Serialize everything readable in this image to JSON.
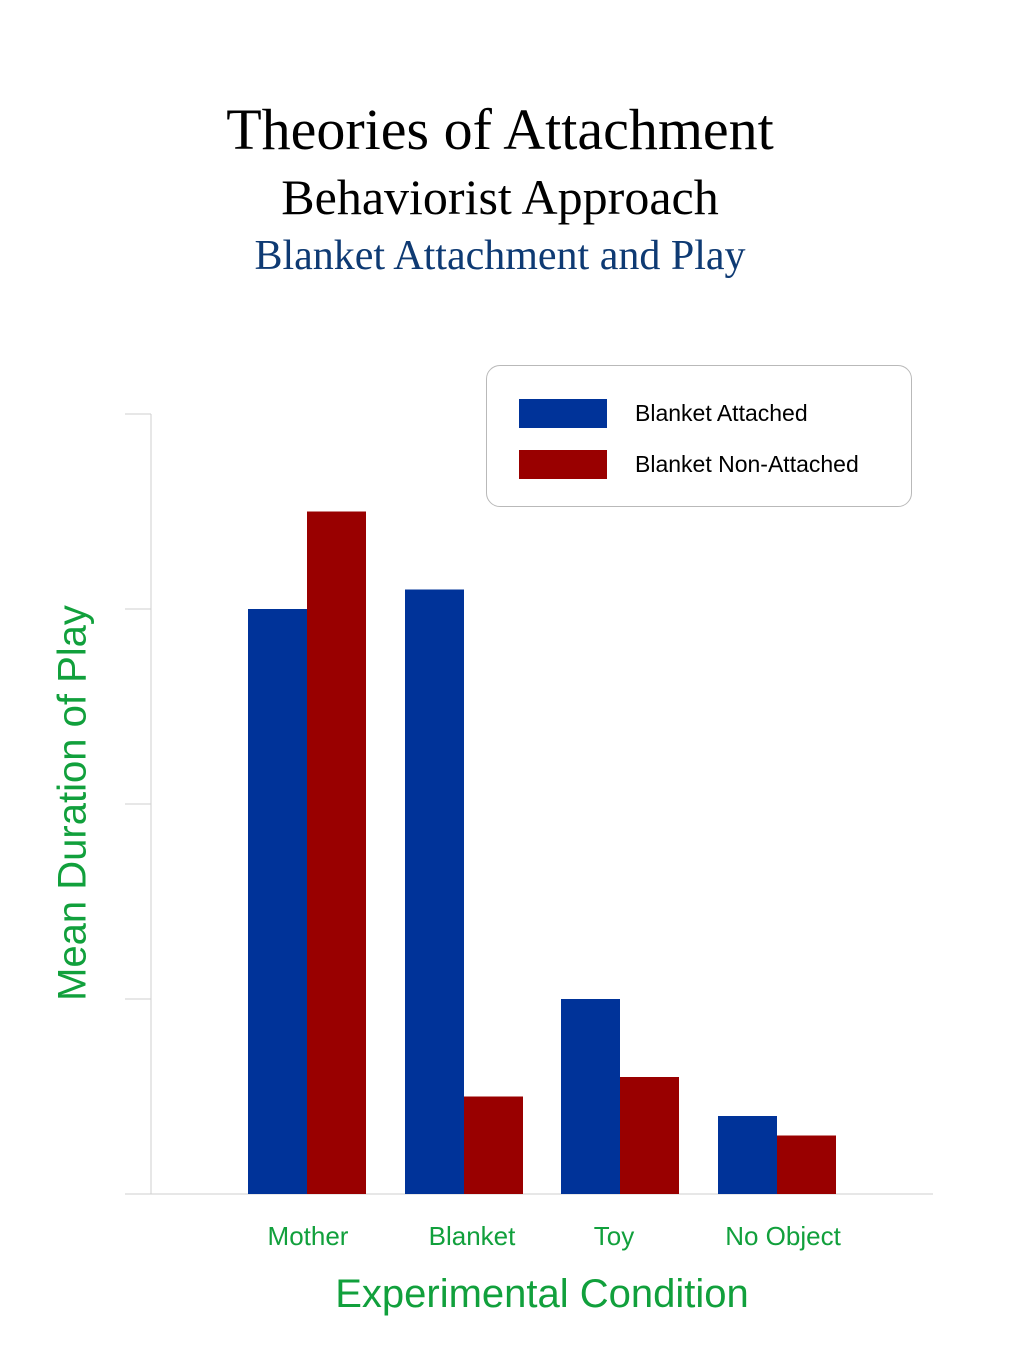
{
  "header": {
    "title": "Theories of Attachment",
    "subtitle": "Behaviorist Approach"
  },
  "colors": {
    "series_1": "#003399",
    "series_2": "#990000",
    "axis_label": "#11a03c",
    "chart_title": "#0e3a73"
  },
  "chart_data": {
    "type": "bar",
    "title": "Blanket Attachment and Play",
    "xlabel": "Experimental Condition",
    "ylabel": "Mean Duration of Play",
    "categories": [
      "Mother",
      "Blanket",
      "Toy",
      "No Object"
    ],
    "series": [
      {
        "name": "Blanket Attached",
        "values": [
          3.0,
          3.1,
          1.0,
          0.4
        ]
      },
      {
        "name": "Blanket Non-Attached",
        "values": [
          3.5,
          0.5,
          0.6,
          0.3
        ]
      }
    ],
    "ylim": [
      0,
      4
    ],
    "y_ticks": [
      0,
      1,
      2,
      3,
      4
    ],
    "y_tick_labels_shown": false,
    "grid": false,
    "legend_position": "top-right"
  }
}
